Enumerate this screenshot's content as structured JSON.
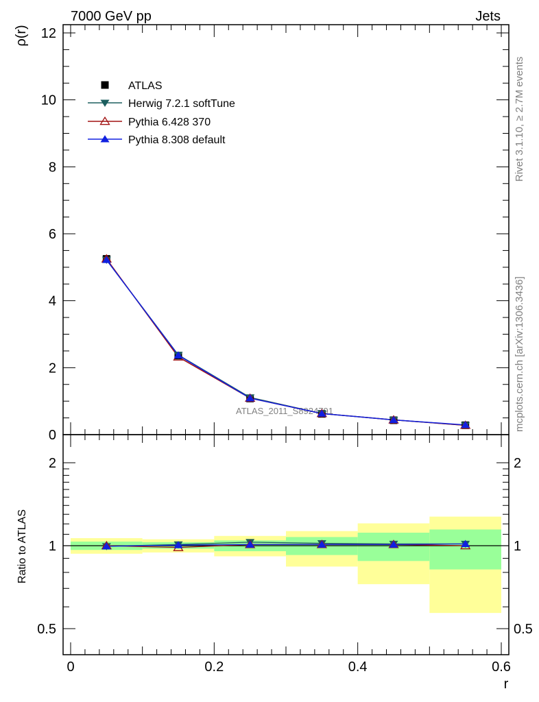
{
  "header": {
    "left": "7000 GeV pp",
    "right": "Jets"
  },
  "side_labels": {
    "rivet": "Rivet 3.1.10, ≥ 2.7M events",
    "mcplots": "mcplots.cern.ch [arXiv:1306.3436]"
  },
  "watermark": "ATLAS_2011_S8924791",
  "colors": {
    "atlas": "#000000",
    "herwig": "#1b5e5e",
    "pythia6": "#a01010",
    "pythia8": "#1020e0",
    "band_inner": "#99ff99",
    "band_outer": "#ffff99"
  },
  "chart_data": [
    {
      "type": "line",
      "panel": "main",
      "ylabel": "ρ(r)",
      "xlabel": "",
      "xlim": [
        0,
        0.6
      ],
      "ylim": [
        0,
        12.3
      ],
      "yticks": [
        0,
        2,
        4,
        6,
        8,
        10,
        12
      ],
      "ytick_labels": [
        "0",
        "2",
        "4",
        "6",
        "8",
        "10",
        "12"
      ],
      "x": [
        0.05,
        0.15,
        0.25,
        0.35,
        0.45,
        0.55
      ],
      "legend": {
        "position": "top-left",
        "entries": [
          "ATLAS",
          "Herwig 7.2.1 softTune",
          "Pythia 6.428 370",
          "Pythia 8.308 default"
        ]
      },
      "series": [
        {
          "name": "ATLAS",
          "marker": "square",
          "values": [
            5.25,
            2.36,
            1.08,
            0.62,
            0.43,
            0.28
          ]
        },
        {
          "name": "Herwig 7.2.1 softTune",
          "marker": "triangle-down",
          "values": [
            5.22,
            2.38,
            1.11,
            0.63,
            0.44,
            0.28
          ]
        },
        {
          "name": "Pythia 6.428 370",
          "marker": "triangle-up-open",
          "values": [
            5.25,
            2.32,
            1.09,
            0.63,
            0.44,
            0.28
          ]
        },
        {
          "name": "Pythia 8.308 default",
          "marker": "triangle-up",
          "values": [
            5.22,
            2.37,
            1.09,
            0.63,
            0.44,
            0.29
          ]
        }
      ]
    },
    {
      "type": "line",
      "panel": "ratio",
      "ylabel": "Ratio to ATLAS",
      "xlabel": "r",
      "xlim": [
        0,
        0.6
      ],
      "ylim": [
        0.35,
        2.25
      ],
      "yticks": [
        0.5,
        1,
        2
      ],
      "ytick_labels": [
        "0.5",
        "1",
        "2"
      ],
      "xticks": [
        0,
        0.2,
        0.4,
        0.6
      ],
      "xtick_labels": [
        "0",
        "0.2",
        "0.4",
        "0.6"
      ],
      "x": [
        0.05,
        0.15,
        0.25,
        0.35,
        0.45,
        0.55
      ],
      "bins": [
        [
          0,
          0.1
        ],
        [
          0.1,
          0.2
        ],
        [
          0.2,
          0.3
        ],
        [
          0.3,
          0.4
        ],
        [
          0.4,
          0.5
        ],
        [
          0.5,
          0.6
        ]
      ],
      "band_inner": [
        [
          0.965,
          1.035
        ],
        [
          0.975,
          1.03
        ],
        [
          0.955,
          1.045
        ],
        [
          0.925,
          1.075
        ],
        [
          0.88,
          1.115
        ],
        [
          0.82,
          1.145
        ]
      ],
      "band_outer": [
        [
          0.935,
          1.065
        ],
        [
          0.945,
          1.055
        ],
        [
          0.915,
          1.085
        ],
        [
          0.84,
          1.13
        ],
        [
          0.725,
          1.205
        ],
        [
          0.57,
          1.275
        ]
      ],
      "series": [
        {
          "name": "Herwig 7.2.1 softTune",
          "values": [
            0.995,
            1.01,
            1.03,
            1.02,
            1.015,
            1.015
          ]
        },
        {
          "name": "Pythia 6.428 370",
          "values": [
            1.0,
            0.985,
            1.01,
            1.01,
            1.01,
            1.0
          ]
        },
        {
          "name": "Pythia 8.308 default",
          "values": [
            0.995,
            1.005,
            1.01,
            1.01,
            1.01,
            1.015
          ]
        }
      ]
    }
  ]
}
